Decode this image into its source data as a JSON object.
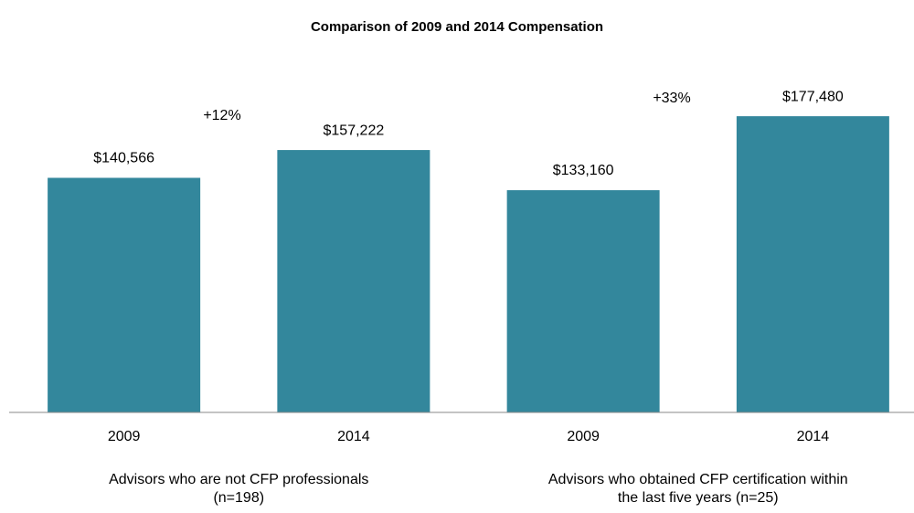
{
  "chart_data": {
    "type": "bar",
    "title": "Comparison of 2009 and 2014 Compensation",
    "categories": [
      "2009",
      "2014",
      "2009",
      "2014"
    ],
    "values": [
      140566,
      157222,
      133160,
      177480
    ],
    "value_labels": [
      "$140,566",
      "$157,222",
      "$133,160",
      "$177,480"
    ],
    "color": "#33879c",
    "ylim": [
      0,
      200000
    ],
    "groups": [
      {
        "label": [
          "Advisors who are not CFP professionals",
          "(n=198)"
        ]
      },
      {
        "label": [
          "Advisors who obtained CFP certification within",
          "the last five years (n=25)"
        ]
      }
    ],
    "annotations": [
      "+12%",
      "+33%"
    ]
  }
}
